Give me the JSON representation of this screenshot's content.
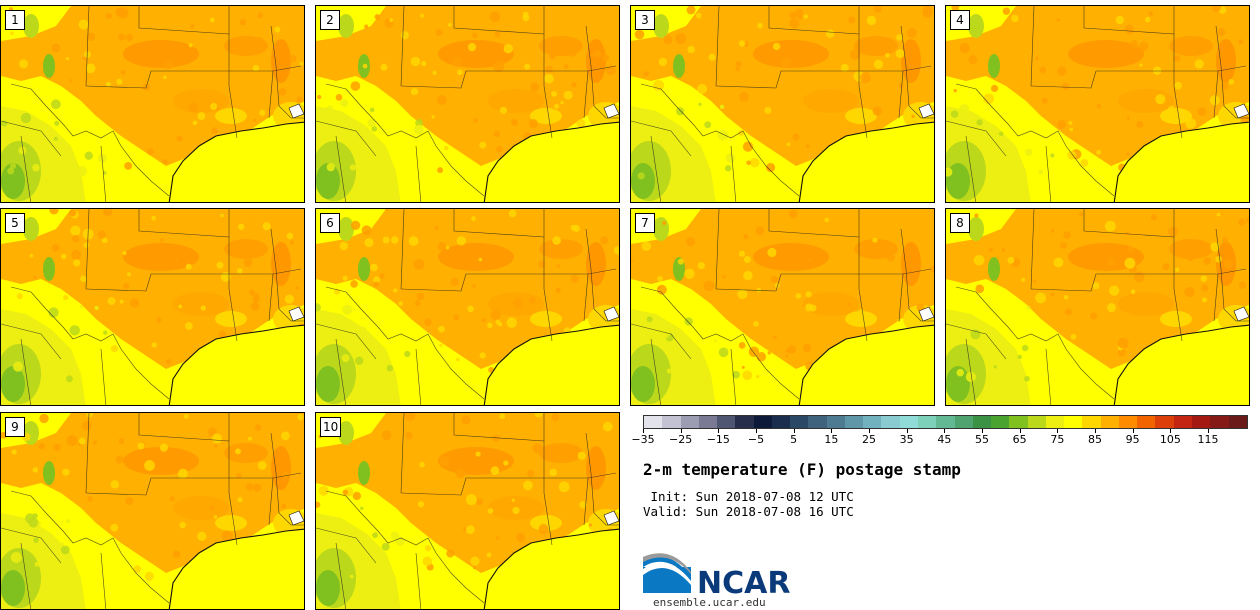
{
  "figure": {
    "title": "2-m temperature (F) postage stamp",
    "init": " Init: Sun 2018-07-08 12 UTC",
    "valid": "Valid: Sun 2018-07-08 16 UTC"
  },
  "panels": [
    "1",
    "2",
    "3",
    "4",
    "5",
    "6",
    "7",
    "8",
    "9",
    "10"
  ],
  "colorbar": {
    "ticks": [
      "−35",
      "−25",
      "−15",
      "−5",
      "5",
      "15",
      "25",
      "35",
      "45",
      "55",
      "65",
      "75",
      "85",
      "95",
      "105",
      "115"
    ],
    "colors": [
      "#e3e3ec",
      "#c2c2d2",
      "#9c9cb3",
      "#7a7a95",
      "#4e5672",
      "#262e4c",
      "#0d1a3a",
      "#1a2d4f",
      "#2b4866",
      "#3f627d",
      "#4e7b92",
      "#5f96a8",
      "#72b2bf",
      "#89cbd1",
      "#8fdcd9",
      "#7dd0b9",
      "#64b995",
      "#4fa36f",
      "#3b9245",
      "#4aa32f",
      "#80c01f",
      "#bcd81b",
      "#ecef11",
      "#ffff00",
      "#ffd700",
      "#ffb000",
      "#ff8c00",
      "#f26400",
      "#dd3f0a",
      "#c32512",
      "#a41a12",
      "#861a16",
      "#6b1a1a"
    ]
  },
  "logo": {
    "name": "NCAR",
    "url": "ensemble.ucar.edu"
  }
}
